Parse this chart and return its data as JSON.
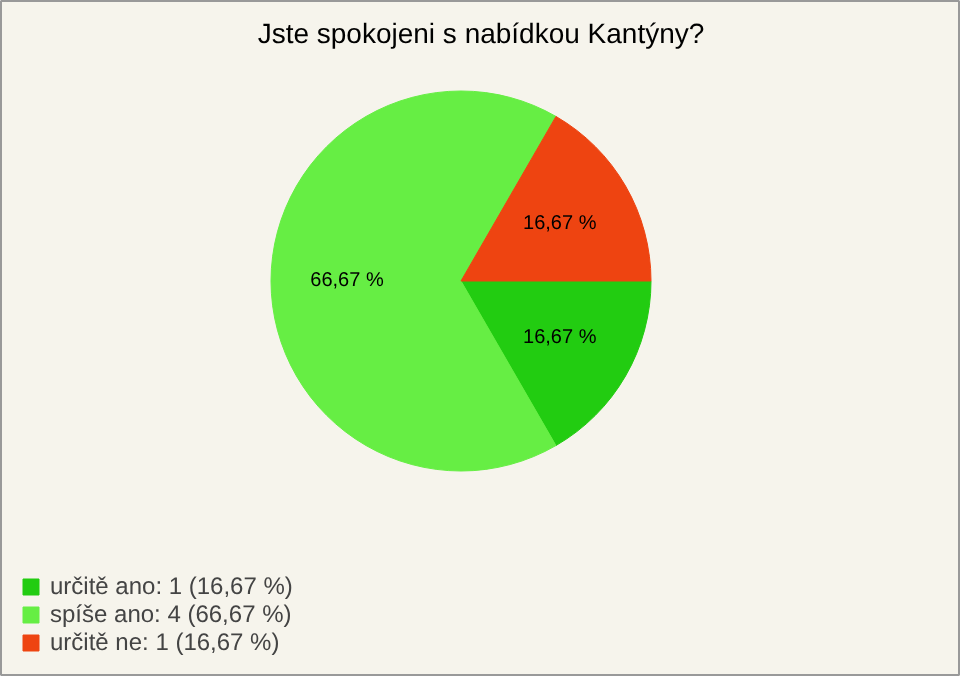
{
  "chart_data": {
    "type": "pie",
    "title": "Jste spokojeni s nabídkou Kantýny?",
    "categories": [
      "určitě ano: 1 (16,67 %)",
      "spíše ano: 4 (66,67 %)",
      "určitě ne: 1 (16,67 %)"
    ],
    "values": [
      16.67,
      66.67,
      16.67
    ],
    "colors": [
      "#22cc11",
      "#66ee44",
      "#ee4411"
    ],
    "value_labels": [
      "16,67 %",
      "66,67 %",
      "16,67 %"
    ],
    "legend": "bottom left"
  }
}
